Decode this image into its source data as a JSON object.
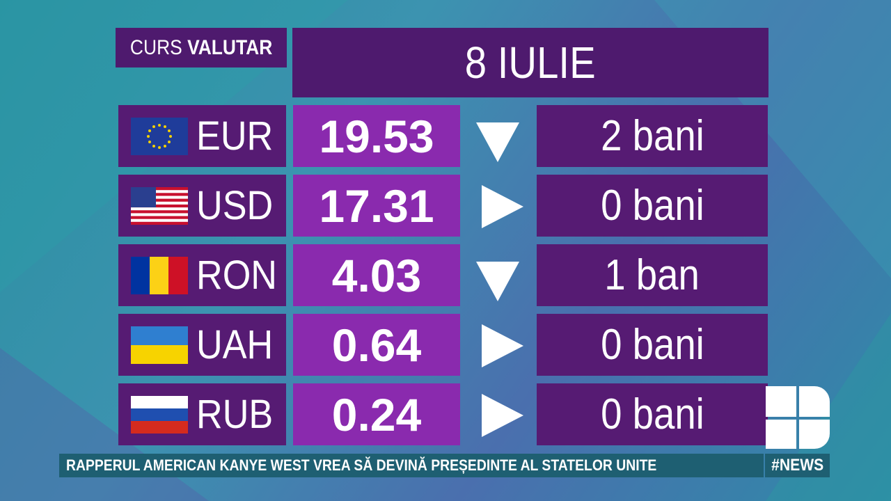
{
  "header": {
    "label_light": "CURS",
    "label_bold": "VALUTAR",
    "date": "8 IULIE"
  },
  "table": {
    "rows": [
      [
        "EUR",
        "19.53",
        "2 bani"
      ],
      [
        "USD",
        "17.31",
        "0 bani"
      ],
      [
        "RON",
        "4.03",
        "1 ban"
      ],
      [
        "UAH",
        "0.64",
        "0 bani"
      ],
      [
        "RUB",
        "0.24",
        "0 bani"
      ]
    ]
  },
  "ticker": {
    "headline": "RAPPERUL AMERICAN KANYE WEST VREA SĂ DEVINĂ PREȘEDINTE AL STATELOR UNITE",
    "tag": "#NEWS"
  }
}
